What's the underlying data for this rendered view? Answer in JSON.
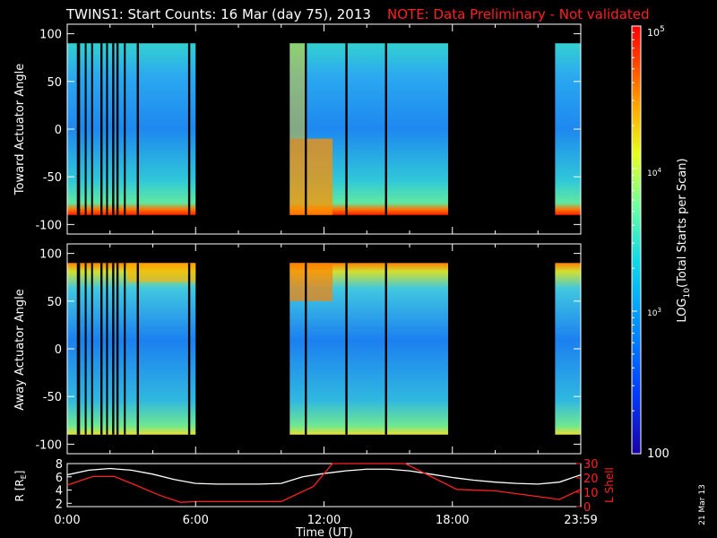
{
  "header": {
    "title": "TWINS1: Start Counts: 16 Mar (day  75), 2013",
    "note": "NOTE: Data Preliminary - Not validated"
  },
  "footer": {
    "stamp": "21 Mar 13"
  },
  "chart_data": [
    {
      "type": "heatmap",
      "panel": "toward",
      "ylabel": "Toward Actuator Angle",
      "ylim": [
        -110,
        110
      ],
      "yticks": [
        "100",
        "50",
        "0",
        "-50",
        "-100"
      ],
      "x_time_range": [
        "00:00",
        "24:00"
      ],
      "angle_range": [
        -90,
        90
      ],
      "data_intervals_hours": [
        [
          0.0,
          6.0
        ],
        [
          10.4,
          17.8
        ],
        [
          22.8,
          24.0
        ]
      ],
      "gaps_hours": [
        [
          0.45,
          0.6
        ],
        [
          0.82,
          0.88
        ],
        [
          1.12,
          1.2
        ],
        [
          1.55,
          1.65
        ],
        [
          1.82,
          1.9
        ],
        [
          2.1,
          2.2
        ],
        [
          2.3,
          2.4
        ],
        [
          2.65,
          2.72
        ],
        [
          3.25,
          3.35
        ],
        [
          5.65,
          5.75
        ],
        [
          11.1,
          11.2
        ],
        [
          13.0,
          13.1
        ],
        [
          14.85,
          14.95
        ]
      ],
      "colorbar": {
        "scale": "log",
        "range": [
          100,
          100000
        ]
      }
    },
    {
      "type": "heatmap",
      "panel": "away",
      "ylabel": "Away Actuator Angle",
      "ylim": [
        -110,
        110
      ],
      "yticks": [
        "100",
        "50",
        "0",
        "-50",
        "-100"
      ],
      "x_time_range": [
        "00:00",
        "24:00"
      ],
      "angle_range": [
        -90,
        90
      ],
      "data_intervals_hours": [
        [
          0.0,
          6.0
        ],
        [
          10.4,
          17.8
        ],
        [
          22.8,
          24.0
        ]
      ],
      "gaps_hours": [
        [
          0.45,
          0.6
        ],
        [
          0.82,
          0.88
        ],
        [
          1.12,
          1.2
        ],
        [
          1.55,
          1.65
        ],
        [
          1.82,
          1.9
        ],
        [
          2.1,
          2.2
        ],
        [
          2.3,
          2.4
        ],
        [
          2.65,
          2.72
        ],
        [
          3.25,
          3.35
        ],
        [
          5.65,
          5.75
        ],
        [
          11.1,
          11.2
        ],
        [
          13.0,
          13.1
        ],
        [
          14.85,
          14.95
        ]
      ],
      "colorbar": {
        "scale": "log",
        "range": [
          100,
          100000
        ]
      }
    },
    {
      "type": "line",
      "panel": "orbit",
      "ylabel": "R [R",
      "ylabel_sub": "E",
      "ylabel_close": "]",
      "ylim": [
        1.5,
        8
      ],
      "yticks": [
        "8",
        "6",
        "4",
        "2"
      ],
      "y2label": "L Shell",
      "y2lim": [
        0,
        30
      ],
      "y2ticks": [
        "30",
        "20",
        "10",
        "0"
      ],
      "xlabel": "Time (UT)",
      "xticks": [
        "0:00",
        "6:00",
        "12:00",
        "18:00",
        "23:59"
      ],
      "series": [
        {
          "name": "R",
          "x": [
            0,
            1,
            2,
            3,
            4,
            5,
            6,
            7,
            8,
            9,
            10,
            11,
            12,
            13,
            14,
            15,
            16,
            17,
            18,
            19,
            20,
            21,
            22,
            23,
            24
          ],
          "y": [
            6.3,
            7.0,
            7.25,
            7.0,
            6.4,
            5.6,
            5.0,
            4.9,
            4.9,
            4.9,
            5.0,
            6.0,
            6.5,
            6.9,
            7.15,
            7.15,
            6.9,
            6.4,
            5.9,
            5.5,
            5.2,
            5.0,
            4.9,
            5.2,
            6.3
          ]
        },
        {
          "name": "L Shell",
          "x": [
            0,
            1.2,
            2.2,
            3.2,
            4.3,
            5.3,
            6.0,
            10.0,
            11.5,
            12.4,
            15.8,
            18.2,
            20.0,
            23.0,
            24.0
          ],
          "y": [
            15,
            21,
            21,
            15,
            8,
            3,
            3.5,
            3.5,
            14,
            30,
            30,
            12,
            11,
            5,
            12
          ]
        }
      ]
    }
  ],
  "colorbar": {
    "label": "LOG",
    "label_sub": "10",
    "label_tail": "(Total Starts per Scan)",
    "top_base": "10",
    "top_exp": "5",
    "mid_base": "10",
    "mid_exp": "4",
    "low_base": "10",
    "low_exp": "3",
    "bottom": "100"
  }
}
